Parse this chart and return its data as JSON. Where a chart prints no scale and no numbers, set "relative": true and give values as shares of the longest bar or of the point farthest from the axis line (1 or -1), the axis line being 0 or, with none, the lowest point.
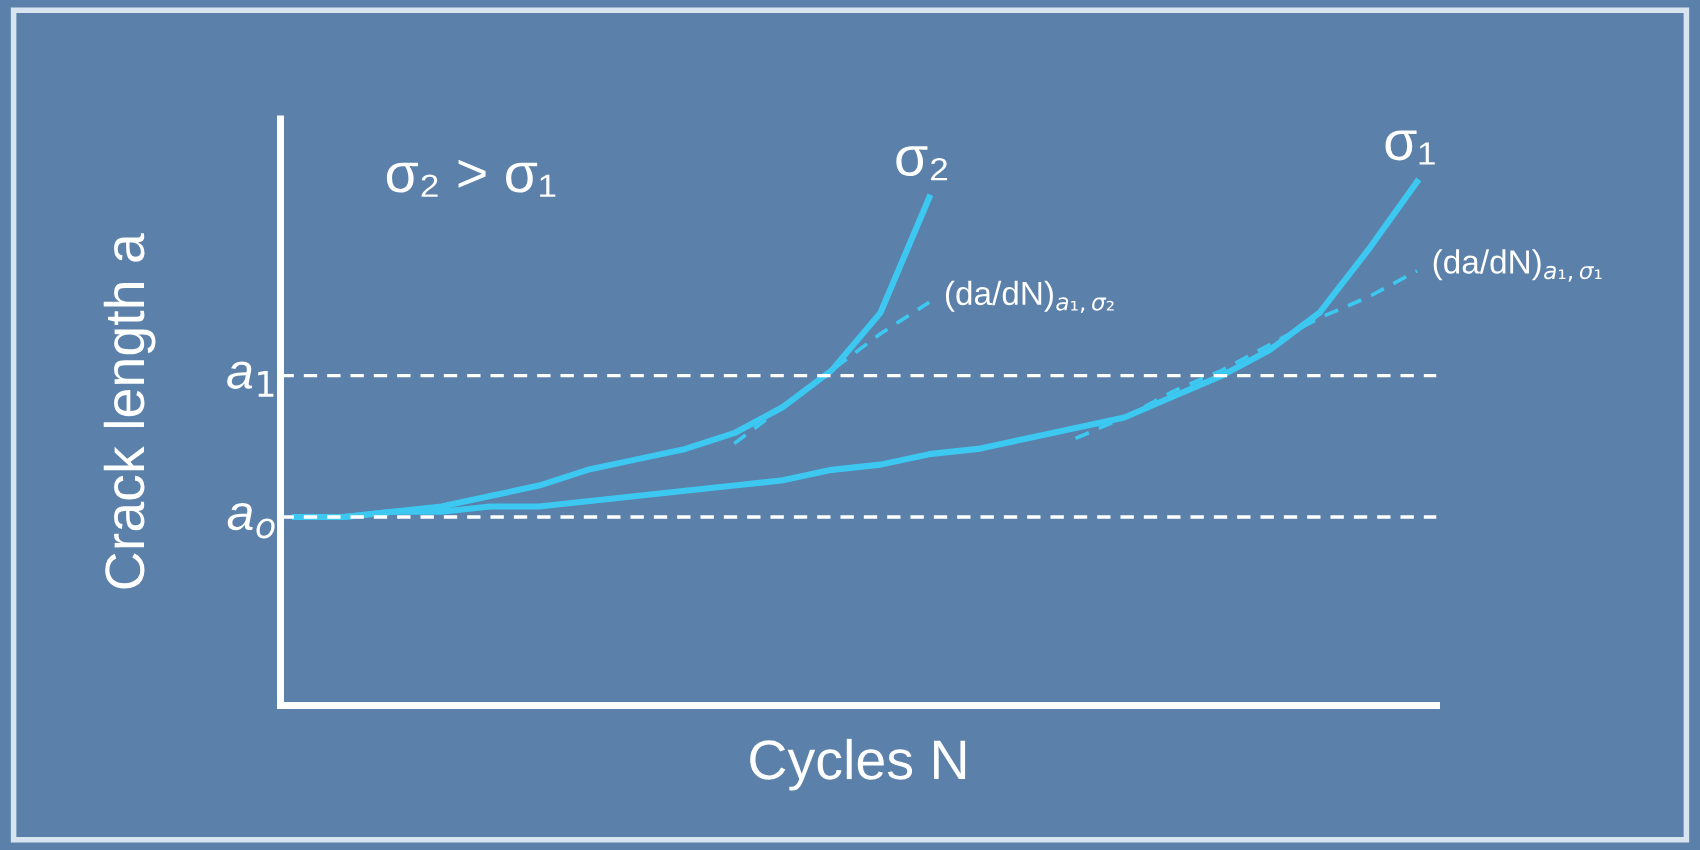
{
  "chart_data": {
    "type": "line",
    "relative": true,
    "ylabel": "Crack length a",
    "xlabel": "Cycles N",
    "annotations": [
      "σ₂ > σ₁"
    ],
    "categories": [
      null,
      null,
      null,
      null,
      null,
      null,
      null,
      null,
      null,
      null,
      null,
      null,
      null,
      null,
      null,
      null,
      null,
      null,
      null,
      null,
      null,
      null,
      null,
      null
    ],
    "series": [
      {
        "name": "σ₂",
        "color": "#3cc8f0",
        "values": [
          0.36,
          0.36,
          0.37,
          0.38,
          0.4,
          0.42,
          0.45,
          0.47,
          0.49,
          0.52,
          0.57,
          0.64,
          0.75,
          0.97,
          null,
          null,
          null,
          null,
          null,
          null,
          null,
          null,
          null,
          null
        ]
      },
      {
        "name": "σ₁",
        "color": "#3cc8f0",
        "values": [
          0.36,
          0.36,
          0.37,
          0.37,
          0.38,
          0.38,
          0.39,
          0.4,
          0.41,
          0.42,
          0.43,
          0.45,
          0.46,
          0.48,
          0.49,
          0.51,
          0.53,
          0.55,
          0.59,
          0.63,
          0.68,
          0.75,
          0.87,
          1.0
        ]
      },
      {
        "name": "(da/dN)$_{a₁,σ₂}$",
        "color": "#3cc8f0",
        "line_style": "dashed",
        "values": [
          null,
          null,
          null,
          null,
          null,
          null,
          null,
          null,
          null,
          0.5,
          0.57,
          0.64,
          0.71,
          0.77,
          null,
          null,
          null,
          null,
          null,
          null,
          null,
          null,
          null,
          null
        ]
      },
      {
        "name": "(da/dN)$_{a₁,σ₁}$",
        "color": "#3cc8f0",
        "line_style": "dashed",
        "values": [
          null,
          null,
          null,
          null,
          null,
          null,
          null,
          null,
          null,
          null,
          null,
          null,
          null,
          null,
          null,
          null,
          0.51,
          0.55,
          0.6,
          0.64,
          0.69,
          0.74,
          0.78,
          0.83
        ]
      }
    ],
    "ref_lines": [
      {
        "axis": "y",
        "value": 0.36,
        "label": "a$_{o}$",
        "color": "#ffffff",
        "line_style": "dashed"
      },
      {
        "axis": "y",
        "value": 0.63,
        "label": "a$_{1}$",
        "color": "#ffffff",
        "line_style": "dashed"
      }
    ],
    "legend": false
  }
}
